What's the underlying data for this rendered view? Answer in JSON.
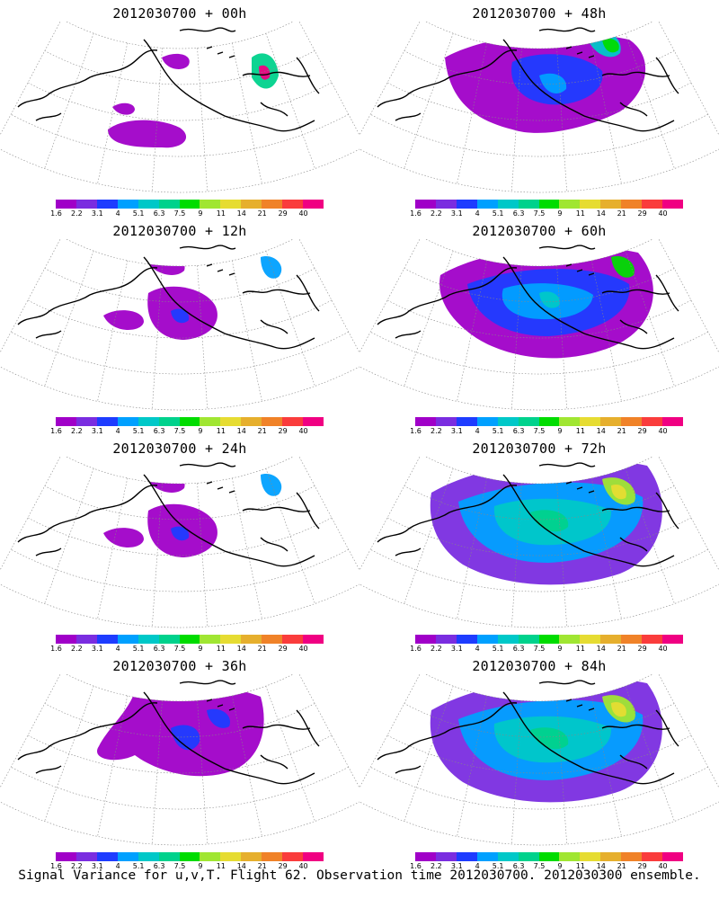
{
  "colorbar": {
    "labels": [
      "1.6",
      "2.2",
      "3.1",
      "4",
      "5.1",
      "6.3",
      "7.5",
      "9",
      "11",
      "14",
      "21",
      "29",
      "40"
    ],
    "colors": [
      "#a000c8",
      "#7a2de0",
      "#1e3cff",
      "#00a0ff",
      "#00c8c8",
      "#00d28c",
      "#00dc00",
      "#a0e632",
      "#e6dc32",
      "#e6af2d",
      "#f08228",
      "#fa3c3c",
      "#f00082"
    ]
  },
  "panels": [
    {
      "title": "2012030700 + 00h",
      "level": 0
    },
    {
      "title": "2012030700 + 48h",
      "level": 3
    },
    {
      "title": "2012030700 + 12h",
      "level": 1
    },
    {
      "title": "2012030700 + 60h",
      "level": 4
    },
    {
      "title": "2012030700 + 24h",
      "level": 1
    },
    {
      "title": "2012030700 + 72h",
      "level": 5
    },
    {
      "title": "2012030700 + 36h",
      "level": 2
    },
    {
      "title": "2012030700 + 84h",
      "level": 5
    }
  ],
  "footer": "Signal Variance for u,v,T. Flight 62. Observation time 2012030700. 2012030300 ensemble."
}
